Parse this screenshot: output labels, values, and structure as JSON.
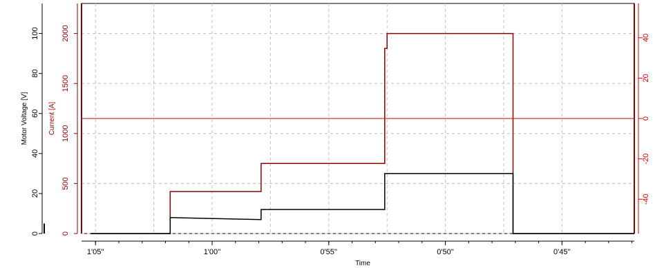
{
  "chart_data": {
    "type": "line",
    "xlabel": "Time",
    "x_ticks": [
      "1'05''",
      "1'00''",
      "0'55''",
      "0'50''",
      "0'45''"
    ],
    "x_tick_seconds": [
      65,
      60,
      55,
      50,
      45
    ],
    "x_range_seconds": [
      65.6,
      41.9
    ],
    "axes": {
      "voltage": {
        "label": "Motor Voltage [V]",
        "range": [
          0,
          115
        ],
        "ticks": [
          0,
          20,
          40,
          60,
          80,
          100
        ],
        "color": "#000000"
      },
      "current": {
        "label": "Current [A]",
        "range": [
          0,
          2300
        ],
        "ticks": [
          0,
          500,
          1000,
          1500,
          2000
        ],
        "color": "#8b0000"
      },
      "right": {
        "label": "",
        "range": [
          -57,
          57
        ],
        "ticks": [
          -40,
          -20,
          0,
          20,
          40
        ],
        "color": "#cc0000"
      }
    },
    "grid": true,
    "series": [
      {
        "name": "Current [A]",
        "color": "#8b0000",
        "axis": "current",
        "points": [
          [
            65.2,
            0
          ],
          [
            61.8,
            0
          ],
          [
            61.8,
            420
          ],
          [
            57.9,
            420
          ],
          [
            57.9,
            700
          ],
          [
            52.6,
            700
          ],
          [
            52.6,
            1850
          ],
          [
            52.5,
            1850
          ],
          [
            52.5,
            2000
          ],
          [
            47.1,
            2000
          ],
          [
            47.1,
            0
          ],
          [
            41.9,
            0
          ]
        ]
      },
      {
        "name": "Motor Voltage [V]",
        "color": "#000000",
        "axis": "voltage",
        "points": [
          [
            65.2,
            0
          ],
          [
            61.8,
            0
          ],
          [
            61.8,
            8
          ],
          [
            57.9,
            7
          ],
          [
            57.9,
            12
          ],
          [
            52.6,
            12
          ],
          [
            52.6,
            30
          ],
          [
            47.1,
            30
          ],
          [
            47.1,
            0
          ],
          [
            41.9,
            0
          ]
        ]
      },
      {
        "name": "",
        "color": "#cc0000",
        "axis": "right",
        "points": [
          [
            65.6,
            0
          ],
          [
            41.9,
            0
          ]
        ]
      }
    ]
  }
}
